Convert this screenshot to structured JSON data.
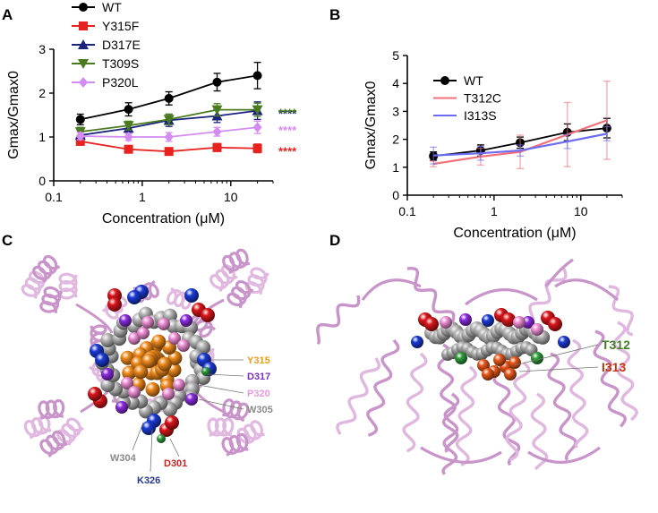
{
  "panels": {
    "a": "A",
    "b": "B",
    "c": "C",
    "d": "D"
  },
  "chart_data": [
    {
      "type": "line",
      "panel": "A",
      "xlabel": "Concentration (μM)",
      "ylabel": "Gmax/Gmax0",
      "xscale": "log",
      "xlim": [
        0.1,
        30
      ],
      "ylim": [
        0,
        3
      ],
      "xticks": [
        0.1,
        1,
        10
      ],
      "xtick_labels": [
        "0.1",
        "1",
        "10"
      ],
      "yticks": [
        0,
        1,
        2,
        3
      ],
      "ytick_labels": [
        "0",
        "1",
        "2",
        "3"
      ],
      "legend_position": "top-left",
      "x": [
        0.2,
        0.7,
        2,
        7,
        20
      ],
      "series": [
        {
          "name": "WT",
          "color": "#000000",
          "marker": "circle",
          "values": [
            1.4,
            1.63,
            1.88,
            2.25,
            2.4
          ],
          "errors": [
            0.12,
            0.15,
            0.15,
            0.2,
            0.3
          ]
        },
        {
          "name": "Y315F",
          "color": "#e8231f",
          "marker": "square",
          "values": [
            0.9,
            0.72,
            0.67,
            0.76,
            0.74
          ],
          "errors": [
            0.08,
            0.06,
            0.07,
            0.09,
            0.1
          ],
          "significance": "****"
        },
        {
          "name": "D317E",
          "color": "#1a237e",
          "marker": "triangle-up",
          "values": [
            1.04,
            1.2,
            1.38,
            1.48,
            1.6
          ],
          "errors": [
            0.1,
            0.12,
            0.14,
            0.15,
            0.2
          ],
          "significance": "****"
        },
        {
          "name": "T309S",
          "color": "#4a7c1f",
          "marker": "triangle-down",
          "values": [
            1.12,
            1.26,
            1.4,
            1.62,
            1.62
          ],
          "errors": [
            0.1,
            0.1,
            0.12,
            0.14,
            0.15
          ],
          "significance": "****"
        },
        {
          "name": "P320L",
          "color": "#d58cf2",
          "marker": "diamond",
          "values": [
            1.02,
            1.0,
            1.0,
            1.12,
            1.22
          ],
          "errors": [
            0.08,
            0.08,
            0.1,
            0.1,
            0.14
          ],
          "significance": "****"
        }
      ]
    },
    {
      "type": "line",
      "panel": "B",
      "xlabel": "Concentration (μM)",
      "ylabel": "Gmax/Gmax0",
      "xscale": "log",
      "xlim": [
        0.1,
        30
      ],
      "ylim": [
        0,
        5
      ],
      "xticks": [
        0.1,
        1,
        10
      ],
      "xtick_labels": [
        "0.1",
        "1",
        "10"
      ],
      "yticks": [
        0,
        1,
        2,
        3,
        4,
        5
      ],
      "ytick_labels": [
        "0",
        "1",
        "2",
        "3",
        "4",
        "5"
      ],
      "legend_position": "top-left",
      "x": [
        0.2,
        0.7,
        2,
        7,
        20
      ],
      "series": [
        {
          "name": "WT",
          "color": "#000000",
          "marker": "circle",
          "values": [
            1.4,
            1.6,
            1.88,
            2.25,
            2.4
          ],
          "errors": [
            0.15,
            0.2,
            0.2,
            0.3,
            0.35
          ]
        },
        {
          "name": "T312C",
          "color": "#f2707a",
          "marker": "none",
          "values": [
            1.12,
            1.38,
            1.55,
            2.17,
            2.68
          ],
          "errors": [
            0.1,
            0.3,
            0.6,
            1.15,
            1.4
          ]
        },
        {
          "name": "I313S",
          "color": "#6b6cf2",
          "marker": "none",
          "values": [
            1.42,
            1.5,
            1.6,
            1.92,
            2.2
          ],
          "errors": [
            0.3,
            0.25,
            0.2,
            0.25,
            0.25
          ]
        }
      ]
    }
  ],
  "structure_c": {
    "labels": [
      {
        "text": "Y315",
        "color": "#f39c12"
      },
      {
        "text": "D317",
        "color": "#7b2fbf"
      },
      {
        "text": "P320",
        "color": "#e899e0"
      },
      {
        "text": "W305",
        "color": "#8a8a8a"
      },
      {
        "text": "W304",
        "color": "#8a8a8a"
      },
      {
        "text": "D301",
        "color": "#cc1f1f"
      },
      {
        "text": "K326",
        "color": "#283593"
      }
    ]
  },
  "structure_d": {
    "labels": [
      {
        "text": "T312",
        "color": "#3f7f25"
      },
      {
        "text": "I313",
        "color": "#c1360f"
      }
    ]
  }
}
